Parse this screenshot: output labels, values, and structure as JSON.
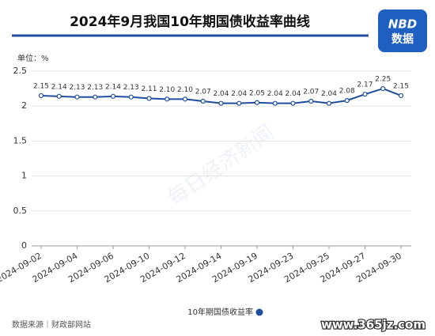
{
  "chart_data": {
    "type": "line",
    "title": "2024年9月我国10年期国债收益率曲线",
    "y_unit_label": "单位：%",
    "categories": [
      "2024-09-02",
      null,
      "2024-09-04",
      null,
      "2024-09-06",
      null,
      "2024-09-10",
      null,
      "2024-09-12",
      null,
      "2024-09-14",
      null,
      "2024-09-19",
      null,
      "2024-09-23",
      null,
      "2024-09-25",
      null,
      "2024-09-27",
      null,
      "2024-09-30"
    ],
    "series": [
      {
        "name": "10年期国债收益率",
        "color": "#1f4e9c",
        "values": [
          2.15,
          2.14,
          2.13,
          2.13,
          2.14,
          2.13,
          2.11,
          2.1,
          2.1,
          2.07,
          2.04,
          2.04,
          2.05,
          2.04,
          2.04,
          2.07,
          2.04,
          2.08,
          2.17,
          2.25,
          2.15
        ],
        "value_labels": [
          "2.15",
          "2.14",
          "2.13",
          "2.13",
          "2.14",
          "2.13",
          "2.11",
          "2.10",
          "2.10",
          "2.07",
          "2.04",
          "2.04",
          "2.05",
          "2.04",
          "2.04",
          "2.07",
          "2.04",
          "2.08",
          "2.17",
          "2.25",
          "2.15"
        ]
      }
    ],
    "ylim": [
      0,
      2.5
    ],
    "yticks": [
      0,
      0.5,
      1,
      1.5,
      2,
      2.5
    ],
    "grid": true,
    "legend": "bottom"
  },
  "logo": {
    "top": "NBD",
    "bottom": "数据"
  },
  "source": "数据来源｜财政部网站",
  "watermark": {
    "center": "每日经济新闻",
    "corner": "www.365jz.com"
  }
}
